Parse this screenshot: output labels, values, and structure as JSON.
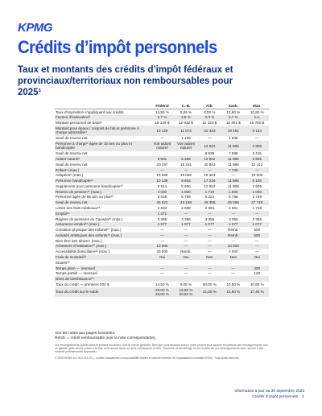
{
  "header": {
    "logo": "KPMG",
    "title": "Crédits d’impôt personnels",
    "subtitle": "Taux et montants des crédits d’impôt fédéraux et provinciaux/territoriaux non remboursables pour 2025¹"
  },
  "table": {
    "header": [
      "",
      "Fédéral",
      "C.-B.",
      "Alb.",
      "Sask.",
      "Man."
    ],
    "rows": [
      [
        "Taux d’imposition s’appliquant aux crédits",
        "14,50 %",
        "5,06 %",
        "6,00 %",
        "10,50 %",
        "10,80 %"
      ],
      [
        "Facteur d’indexation²",
        "2,7 %",
        "2,8 %",
        "2,0 %",
        "2,7 %",
        "s.o."
      ],
      [
        "Montant personnel de base³",
        "16 129 $",
        "12 932 $",
        "22 323 $",
        "19 491 $",
        "15 780 $"
      ],
      [
        "Montant pour époux / conjoint de fait et personne à charge admissible⁴",
        "16 129",
        "11 073",
        "22 323",
        "19 491",
        "9 134"
      ],
      [
        "Seuil de revenu net",
        "—",
        "1 108",
        "—",
        "1 949",
        "—"
      ],
      [
        "Personne à charge⁵ âgée de 18 ans ou plus et handicapée",
        "Voir aidant naturel",
        "Voir aidant naturel",
        "12 922",
        "11 986",
        "3 605"
      ],
      [
        "Seuil de revenu net",
        "",
        "",
        "8 935",
        "7 838",
        "5 115"
      ],
      [
        "Aidant naturel⁶",
        "8 601",
        "5 366",
        "12 922",
        "11 986",
        "3 605"
      ],
      [
        "Seuil de revenu net",
        "20 197",
        "18 161",
        "20 943",
        "11 986",
        "12 312"
      ],
      [
        "Enfant⁷ (max.)",
        "—",
        "—",
        "—",
        "7 736",
        "—"
      ],
      [
        "Adoption⁸ (max.)",
        "19 066",
        "19 066",
        "19 304",
        "—",
        "10 000"
      ],
      [
        "Personne handicapée⁹",
        "10 138",
        "9 683",
        "17 216",
        "11 986",
        "6 180"
      ],
      [
        "Supplément pour personne handicapée¹⁰",
        "5 914",
        "5 650",
        "12 922",
        "11 986",
        "3 605"
      ],
      [
        "Revenu de pension¹¹ (max.)",
        "2 000",
        "1 000",
        "1 719",
        "1 000",
        "1 000"
      ],
      [
        "Personne âgée de 65 ans ou plus¹²",
        "9 028",
        "5 799",
        "6 221",
        "5 758",
        "3 728"
      ],
      [
        "Seuil de revenu net",
        "45 522",
        "43 169",
        "46 308",
        "45 068",
        "27 749"
      ],
      [
        "Limite des frais médicaux¹³",
        "2 834",
        "2 689",
        "2 984",
        "2 681",
        "1 728"
      ],
      [
        "Emploi¹⁴",
        "1 471",
        "—",
        "—",
        "—",
        "—"
      ],
      [
        "Régime de pensions du Canada¹⁵ (max.)",
        "3 356",
        "3 356",
        "3 356",
        "3 356",
        "3 356"
      ],
      [
        "Assurance-emploi¹⁶ (max.)",
        "1 077",
        "1 077",
        "1 077",
        "1 077",
        "1 077"
      ],
      [
        "Condition physique des enfants¹⁷ (max.)",
        "—",
        "—",
        "—",
        "Remb.",
        "500"
      ],
      [
        "Activités artistiques des enfants¹⁸ (max.)",
        "—",
        "—",
        "—",
        "Remb.",
        "500"
      ],
      [
        "Bien-être des aînés¹⁹ (max.)",
        "—",
        "—",
        "—",
        "—",
        "—"
      ],
      [
        "Acheteurs d’habitation²⁰ (max.)",
        "10 000",
        "—",
        "—",
        "10 000",
        "—"
      ],
      [
        "Accessibilité domiciliaire²¹ (max.)",
        "20 000",
        "Remb.",
        "—",
        "4 000",
        "—"
      ],
      [
        "Frais de scolarité²²",
        "Oui",
        "Oui",
        "Non",
        "Non",
        "Oui"
      ],
      [
        "Études²³",
        "",
        "",
        "",
        "",
        ""
      ],
      [
        "Temps plein — mensuel",
        "—",
        "—",
        "—",
        "—",
        "400"
      ],
      [
        "Temps partiel — mensuel",
        "—",
        "—",
        "—",
        "—",
        "120"
      ],
      [
        "Dons de bienfaisance²⁴",
        "",
        "",
        "",
        "",
        ""
      ],
      [
        "Taux du crédit — premiers 200 $",
        "14,50 %",
        "5,06 %",
        "60,00 %",
        "10,50 %",
        "10,80 %"
      ],
      [
        "Taux du crédit sur le solde",
        "29,00 %\n33,00 %",
        "16,80 %\n20,50 %",
        "21,00 %",
        "14,50 %",
        "17,40 %"
      ]
    ]
  },
  "notes": {
    "line1": "Voir les notes aux pages suivantes.",
    "line2": "Remb. = crédit remboursable (voir la note correspondante).",
    "fine1": "Les renseignements publiés dans le présent document sont de nature générale. Bien que nous fassions tout en notre pouvoir pour assurer l’exactitude des renseignements, rien ne garantit qu’ils seront exacts à la date où ils seront reçus ou qu’ils continueront à l’être. Personne ne devrait agir en se fondant sur ces renseignements sans recourir à des conseils professionnels appropriés.",
    "fine2": "© 2025 KPMG s.r.l./S.E.N.C.R.L., société canadienne à responsabilité limitée et cabinet membre de l’organisation mondiale KPMG. Tous droits réservés."
  },
  "footer": {
    "updated": "Information à jour au 30 septembre 2025",
    "doc": "Crédits d’impôt personnels",
    "page": "1"
  }
}
